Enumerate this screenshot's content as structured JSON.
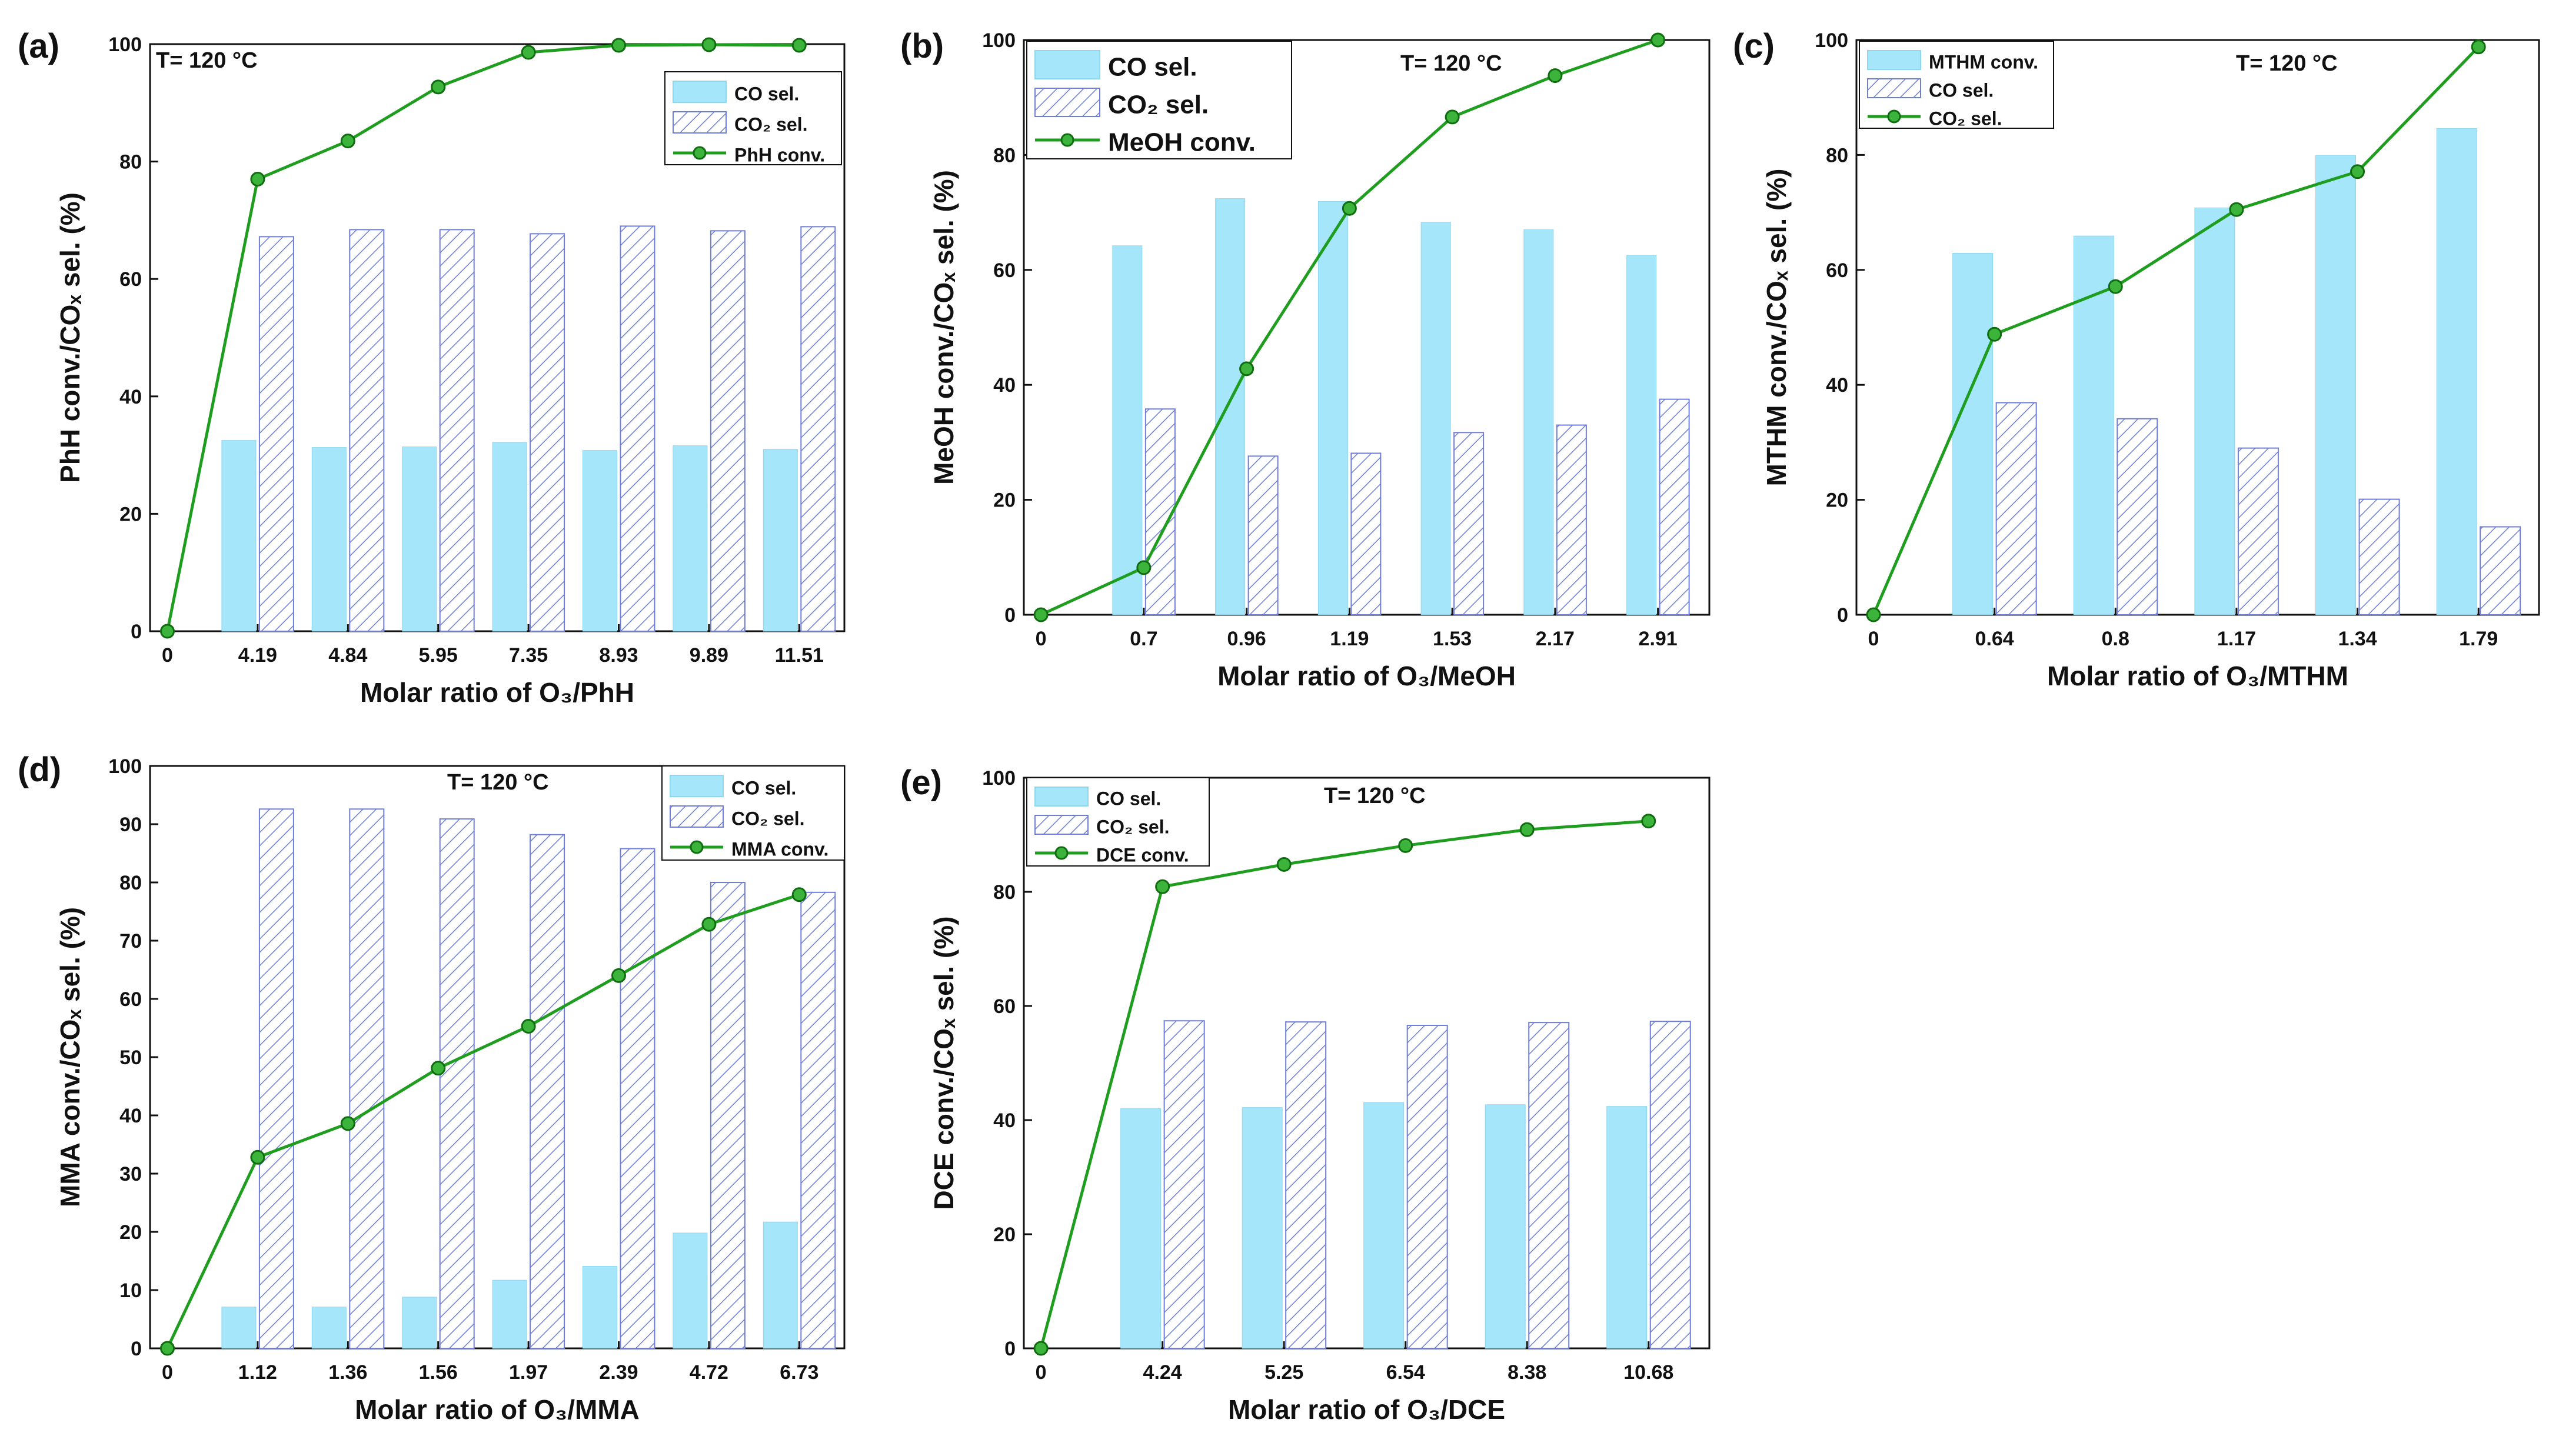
{
  "colors": {
    "co_fill": "#a6e6fb",
    "co2_hatch": "#6f7ed8",
    "line": "#1e9d1e",
    "marker": "#3cb43c"
  },
  "chart_data": [
    {
      "type": "bar",
      "panel_label": "(a)",
      "title": "",
      "temperature_label": "T= 120 °C",
      "xlabel": "Molar ratio of O₃/PhH",
      "ylabel": "PhH conv./COₓ sel. (%)",
      "ylim": [
        0,
        100
      ],
      "yticks": [
        "0",
        "20",
        "40",
        "60",
        "80",
        "100"
      ],
      "x_origin_label": "0",
      "categories": [
        "4.19",
        "4.84",
        "5.95",
        "7.35",
        "8.93",
        "9.89",
        "11.51"
      ],
      "series": [
        {
          "name": "CO sel.",
          "kind": "bar",
          "values": [
            32.5,
            31.3,
            31.4,
            32.2,
            30.8,
            31.6,
            31.0
          ]
        },
        {
          "name": "CO₂ sel.",
          "kind": "bar-hatched",
          "values": [
            67.2,
            68.4,
            68.4,
            67.7,
            69.0,
            68.2,
            68.9
          ]
        },
        {
          "name": "PhH conv.",
          "kind": "line",
          "origin": 0,
          "values": [
            77.0,
            83.5,
            92.7,
            98.6,
            99.8,
            99.9,
            99.8
          ]
        }
      ],
      "legend_position": "top-right"
    },
    {
      "type": "bar",
      "panel_label": "(b)",
      "title": "",
      "temperature_label": "T= 120 °C",
      "xlabel": "Molar ratio of O₃/MeOH",
      "ylabel": "MeOH conv./COₓ sel. (%)",
      "ylim": [
        0,
        100
      ],
      "yticks": [
        "0",
        "20",
        "40",
        "60",
        "80",
        "100"
      ],
      "x_origin_label": "0",
      "categories": [
        "0.7",
        "0.96",
        "1.19",
        "1.53",
        "2.17",
        "2.91"
      ],
      "series": [
        {
          "name": "CO sel.",
          "kind": "bar",
          "values": [
            64.2,
            72.4,
            71.9,
            68.3,
            67.0,
            62.5
          ]
        },
        {
          "name": "CO₂ sel.",
          "kind": "bar-hatched",
          "values": [
            35.8,
            27.6,
            28.1,
            31.7,
            33.0,
            37.5
          ]
        },
        {
          "name": "MeOH conv.",
          "kind": "line",
          "origin": 0,
          "values": [
            8.2,
            42.8,
            70.7,
            86.6,
            93.8,
            100.0
          ]
        }
      ],
      "legend_position": "top-left"
    },
    {
      "type": "bar",
      "panel_label": "(c)",
      "title": "",
      "temperature_label": "T= 120 °C",
      "xlabel": "Molar ratio of O₃/MTHM",
      "ylabel": "MTHM conv./COₓ sel. (%)",
      "ylim": [
        0,
        100
      ],
      "yticks": [
        "0",
        "20",
        "40",
        "60",
        "80",
        "100"
      ],
      "x_origin_label": "0",
      "categories": [
        "0.64",
        "0.8",
        "1.17",
        "1.34",
        "1.79"
      ],
      "series": [
        {
          "name": "MTHM conv.",
          "kind": "bar",
          "values": [
            62.9,
            65.9,
            70.8,
            79.9,
            84.6
          ]
        },
        {
          "name": "CO sel.",
          "kind": "bar-hatched",
          "values": [
            36.9,
            34.1,
            29.0,
            20.1,
            15.3
          ]
        },
        {
          "name": "CO₂ sel.",
          "kind": "line",
          "origin": 0,
          "values": [
            48.8,
            57.1,
            70.5,
            77.1,
            98.8
          ]
        }
      ],
      "legend_position": "top-left"
    },
    {
      "type": "bar",
      "panel_label": "(d)",
      "title": "",
      "temperature_label": "T= 120 °C",
      "xlabel": "Molar ratio of O₃/MMA",
      "ylabel": "MMA conv./COₓ sel. (%)",
      "ylim": [
        0,
        100
      ],
      "yticks": [
        "0",
        "10",
        "20",
        "30",
        "40",
        "50",
        "60",
        "70",
        "80",
        "90",
        "100"
      ],
      "x_origin_label": "0",
      "categories": [
        "1.12",
        "1.36",
        "1.56",
        "1.97",
        "2.39",
        "4.72",
        "6.73"
      ],
      "series": [
        {
          "name": "CO sel.",
          "kind": "bar",
          "values": [
            7.1,
            7.1,
            8.8,
            11.7,
            14.1,
            19.8,
            21.7
          ]
        },
        {
          "name": "CO₂ sel.",
          "kind": "bar-hatched",
          "values": [
            92.6,
            92.6,
            90.9,
            88.2,
            85.8,
            80.0,
            78.3
          ]
        },
        {
          "name": "MMA conv.",
          "kind": "line",
          "origin": 0,
          "values": [
            32.8,
            38.6,
            48.1,
            55.3,
            64.0,
            72.8,
            77.9
          ]
        }
      ],
      "legend_position": "top-right"
    },
    {
      "type": "bar",
      "panel_label": "(e)",
      "title": "",
      "temperature_label": "T= 120 °C",
      "xlabel": "Molar ratio of O₃/DCE",
      "ylabel": "DCE conv./COₓ sel. (%)",
      "ylim": [
        0,
        100
      ],
      "yticks": [
        "0",
        "20",
        "40",
        "60",
        "80",
        "100"
      ],
      "x_origin_label": "0",
      "categories": [
        "4.24",
        "5.25",
        "6.54",
        "8.38",
        "10.68"
      ],
      "series": [
        {
          "name": "CO sel.",
          "kind": "bar",
          "values": [
            42.0,
            42.2,
            43.1,
            42.7,
            42.4
          ]
        },
        {
          "name": "CO₂ sel.",
          "kind": "bar-hatched",
          "values": [
            57.4,
            57.2,
            56.6,
            57.1,
            57.3
          ]
        },
        {
          "name": "DCE conv.",
          "kind": "line",
          "origin": 0,
          "values": [
            80.9,
            84.8,
            88.1,
            90.9,
            92.4
          ]
        }
      ],
      "legend_position": "top-left"
    }
  ]
}
